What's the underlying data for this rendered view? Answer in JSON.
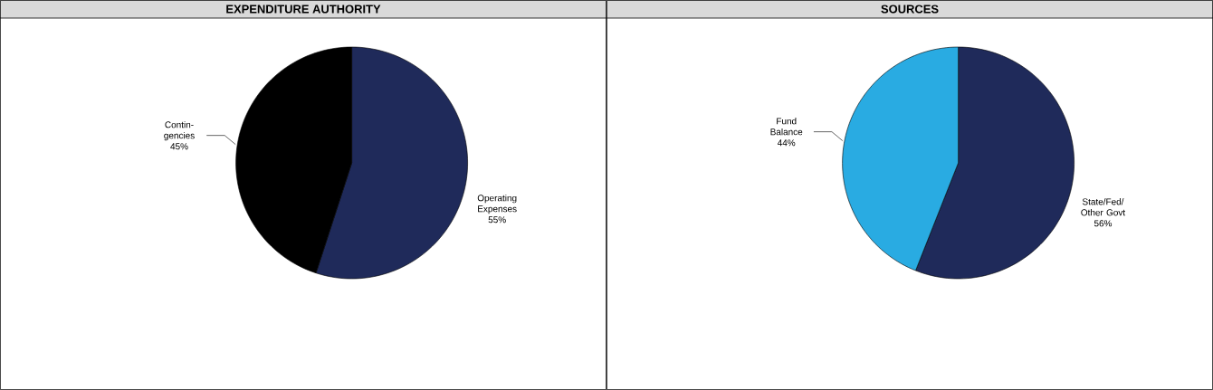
{
  "chart_data": [
    {
      "type": "pie",
      "title": "EXPENDITURE AUTHORITY",
      "categories": [
        "Operating Expenses",
        "Contin-gencies"
      ],
      "values": [
        55,
        45
      ],
      "value_labels": [
        "55%",
        "45%"
      ],
      "colors": [
        "#1f2a5a",
        "#000000"
      ]
    },
    {
      "type": "pie",
      "title": "SOURCES",
      "categories": [
        "State/Fed/ Other Govt",
        "Fund Balance"
      ],
      "values": [
        56,
        44
      ],
      "value_labels": [
        "56%",
        "44%"
      ],
      "colors": [
        "#1f2a5a",
        "#29abe2"
      ]
    }
  ]
}
